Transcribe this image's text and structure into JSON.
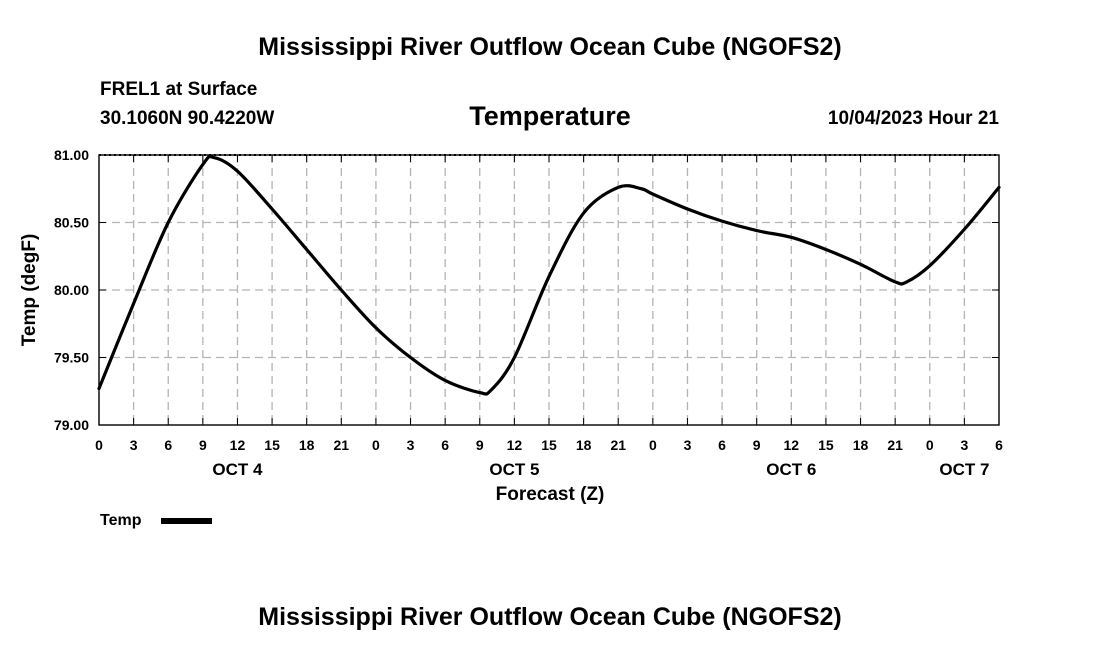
{
  "header": {
    "title": "Mississippi River Outflow Ocean Cube (NGOFS2)",
    "station": "FREL1 at Surface",
    "coords": "30.1060N  90.4220W",
    "variable": "Temperature",
    "datetime": "10/04/2023 Hour 21"
  },
  "footer": {
    "title": "Mississippi River Outflow Ocean Cube (NGOFS2)"
  },
  "legend": {
    "label": "Temp"
  },
  "chart_data": {
    "type": "line",
    "title": "Temperature",
    "xlabel": "Forecast (Z)",
    "ylabel": "Temp (degF)",
    "xlim": [
      0,
      78
    ],
    "ylim": [
      79.0,
      81.0
    ],
    "grid": true,
    "x_ticks": [
      0,
      3,
      6,
      9,
      12,
      15,
      18,
      21,
      24,
      27,
      30,
      33,
      36,
      39,
      42,
      45,
      48,
      51,
      54,
      57,
      60,
      63,
      66,
      69,
      72,
      75,
      78
    ],
    "x_tick_labels": [
      "0",
      "3",
      "6",
      "9",
      "12",
      "15",
      "18",
      "21",
      "0",
      "3",
      "6",
      "9",
      "12",
      "15",
      "18",
      "21",
      "0",
      "3",
      "6",
      "9",
      "12",
      "15",
      "18",
      "21",
      "0",
      "3",
      "6"
    ],
    "day_labels": [
      {
        "x": 12,
        "label": "OCT 4"
      },
      {
        "x": 36,
        "label": "OCT 5"
      },
      {
        "x": 60,
        "label": "OCT 6"
      },
      {
        "x": 75,
        "label": "OCT 7"
      }
    ],
    "y_ticks": [
      79.0,
      79.5,
      80.0,
      80.5,
      81.0
    ],
    "y_tick_labels": [
      "79.00",
      "79.50",
      "80.00",
      "80.50",
      "81.00"
    ],
    "series": [
      {
        "name": "Temp",
        "color": "#000000",
        "x": [
          0,
          3,
          6,
          9,
          10,
          12,
          15,
          18,
          21,
          24,
          27,
          30,
          33,
          34,
          36,
          39,
          42,
          45,
          47,
          48,
          51,
          54,
          57,
          60,
          63,
          66,
          69,
          70,
          72,
          75,
          78
        ],
        "y": [
          79.27,
          79.9,
          80.5,
          80.93,
          80.98,
          80.88,
          80.6,
          80.3,
          80.0,
          79.72,
          79.5,
          79.33,
          79.24,
          79.26,
          79.5,
          80.1,
          80.57,
          80.76,
          80.75,
          80.71,
          80.6,
          80.51,
          80.44,
          80.39,
          80.3,
          80.19,
          80.06,
          80.06,
          80.18,
          80.45,
          80.76
        ]
      }
    ]
  }
}
